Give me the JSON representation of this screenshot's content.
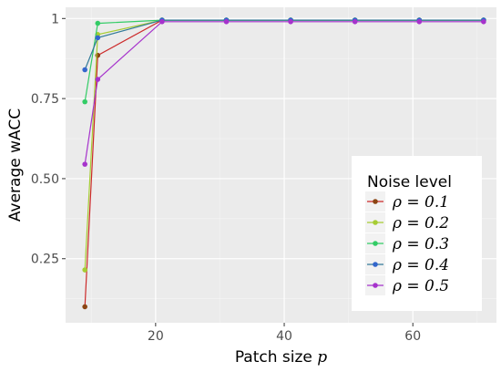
{
  "chart_data": {
    "type": "line",
    "xlabel": "Patch size",
    "xlabel_symbol": "p",
    "ylabel": "Average wACC",
    "xlim": [
      6,
      73
    ],
    "ylim": [
      0.05,
      1.035
    ],
    "x_ticks": [
      20,
      40,
      60
    ],
    "x_tick_labels": [
      "20",
      "40",
      "60"
    ],
    "y_ticks": [
      0.25,
      0.5,
      0.75,
      1
    ],
    "y_tick_labels": [
      "0.25",
      "0.50",
      "0.75",
      "1"
    ],
    "grid": true,
    "panel_background": "#ebebeb",
    "legend": {
      "title": "Noise level",
      "placement": "bottom-right-inside"
    },
    "series": [
      {
        "name": "ρ = 0.1",
        "color": "#8b4513",
        "line_color": "#cc2a2a",
        "x": [
          9,
          11,
          21,
          31,
          41,
          51,
          61,
          71
        ],
        "y": [
          0.1,
          0.885,
          0.995,
          0.995,
          0.995,
          0.995,
          0.995,
          0.995
        ]
      },
      {
        "name": "ρ = 0.2",
        "color": "#a6cc33",
        "line_color": "#a6cc33",
        "x": [
          9,
          11,
          21,
          31,
          41,
          51,
          61,
          71
        ],
        "y": [
          0.215,
          0.95,
          0.995,
          0.995,
          0.995,
          0.995,
          0.995,
          0.995
        ]
      },
      {
        "name": "ρ = 0.3",
        "color": "#33cc66",
        "line_color": "#33cc66",
        "x": [
          9,
          11,
          21,
          31,
          41,
          51,
          61,
          71
        ],
        "y": [
          0.74,
          0.985,
          0.995,
          0.995,
          0.995,
          0.995,
          0.995,
          0.995
        ]
      },
      {
        "name": "ρ = 0.4",
        "color": "#3366cc",
        "line_color": "#337a99",
        "x": [
          9,
          11,
          21,
          31,
          41,
          51,
          61,
          71
        ],
        "y": [
          0.84,
          0.94,
          0.995,
          0.995,
          0.995,
          0.995,
          0.995,
          0.995
        ]
      },
      {
        "name": "ρ = 0.5",
        "color": "#a633cc",
        "line_color": "#a633cc",
        "x": [
          9,
          11,
          21,
          31,
          41,
          51,
          61,
          71
        ],
        "y": [
          0.545,
          0.81,
          0.99,
          0.99,
          0.99,
          0.99,
          0.99,
          0.99
        ]
      }
    ]
  }
}
